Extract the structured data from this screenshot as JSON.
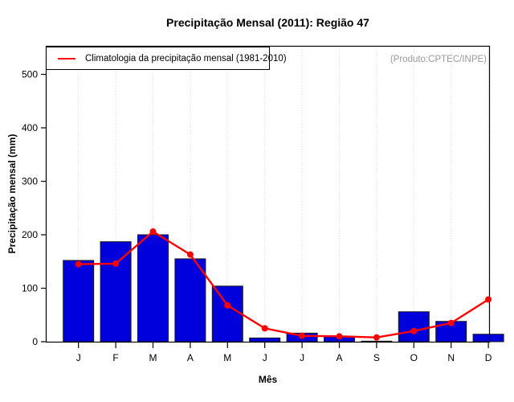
{
  "title": "Precipitação Mensal (2011): Região 47",
  "legend": {
    "label": "Climatologia da precipitação mensal (1981-2010)",
    "line_color": "#FF0000"
  },
  "annotation": {
    "text": "(Produto:CPTEC/INPE)",
    "color": "#999999"
  },
  "axes": {
    "xlabel": "Mês",
    "ylabel": "Precipitação mensal (mm)"
  },
  "colors": {
    "bar_fill": "#0000DD",
    "bar_border": "#1a1a1a",
    "line": "#FF0000",
    "grid": "#D8D8D8",
    "axis": "#000000"
  },
  "chart_data": {
    "type": "bar",
    "title": "Precipitação Mensal (2011): Região 47",
    "xlabel": "Mês",
    "ylabel": "Precipitação mensal (mm)",
    "categories": [
      "J",
      "F",
      "M",
      "A",
      "M",
      "J",
      "J",
      "A",
      "S",
      "O",
      "N",
      "D"
    ],
    "series": [
      {
        "name": "Precipitação mensal 2011",
        "type": "bar",
        "color": "#0000DD",
        "values": [
          152,
          187,
          200,
          155,
          104,
          7,
          16,
          10,
          1,
          56,
          38,
          14
        ]
      },
      {
        "name": "Climatologia da precipitação mensal (1981-2010)",
        "type": "line",
        "color": "#FF0000",
        "values": [
          145,
          146,
          206,
          163,
          68,
          25,
          11,
          10,
          8,
          20,
          35,
          79
        ]
      }
    ],
    "yticks": [
      0,
      100,
      200,
      300,
      400,
      500
    ],
    "ylim": [
      0,
      552
    ],
    "grid": "vertical-dotted",
    "legend_position": "top-left",
    "annotation": "(Produto:CPTEC/INPE)"
  }
}
